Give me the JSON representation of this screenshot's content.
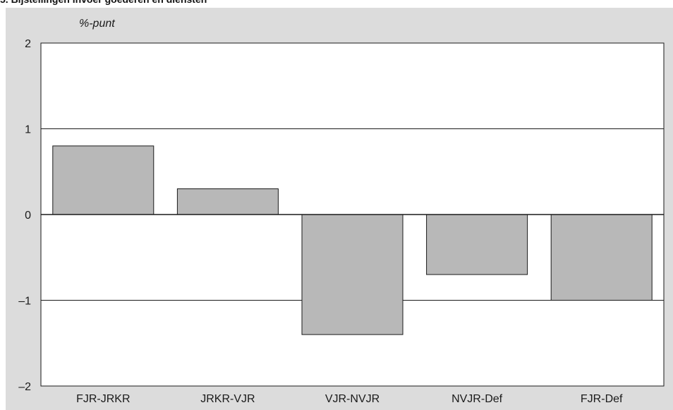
{
  "chart_data": {
    "type": "bar",
    "title": "5. Bijstellingen invoer goederen en diensten",
    "unit_label": "%-punt",
    "categories": [
      "FJR-JRKR",
      "JRKR-VJR",
      "VJR-NVJR",
      "NVJR-Def",
      "FJR-Def"
    ],
    "values": [
      0.8,
      0.3,
      -1.4,
      -0.7,
      -1.0
    ],
    "ylim": [
      -2,
      2
    ],
    "yticks": [
      2,
      1,
      0,
      -1,
      -2
    ],
    "ytick_labels": [
      "2",
      "1",
      "0",
      "–1",
      "–2"
    ],
    "grid": true,
    "colors": {
      "panel_background": "#dcdcdc",
      "plot_background": "#ffffff",
      "bar_fill": "#b8b8b8",
      "bar_stroke": "#1a1a1a",
      "axis": "#1a1a1a"
    }
  }
}
